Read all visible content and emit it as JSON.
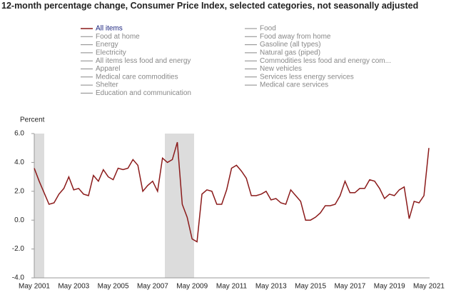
{
  "chart_data": {
    "type": "line",
    "title": "12-month percentage change, Consumer Price Index, selected categories, not seasonally adjusted",
    "y_label": "Percent",
    "categories": [
      "May 2001",
      null,
      null,
      null,
      null,
      null,
      null,
      null,
      "May 2003",
      null,
      null,
      null,
      null,
      null,
      null,
      null,
      "May 2005",
      null,
      null,
      null,
      null,
      null,
      null,
      null,
      "May 2007",
      null,
      null,
      null,
      null,
      null,
      null,
      null,
      "May 2009",
      null,
      null,
      null,
      null,
      null,
      null,
      null,
      "May 2011",
      null,
      null,
      null,
      null,
      null,
      null,
      null,
      "May 2013",
      null,
      null,
      null,
      null,
      null,
      null,
      null,
      "May 2015",
      null,
      null,
      null,
      null,
      null,
      null,
      null,
      "May 2017",
      null,
      null,
      null,
      null,
      null,
      null,
      null,
      "May 2019",
      null,
      null,
      null,
      null,
      null,
      null,
      null,
      "May 2021"
    ],
    "series": [
      {
        "name": "All items",
        "color": "#8b1a1a",
        "values": [
          3.6,
          2.7,
          1.9,
          1.1,
          1.2,
          1.8,
          2.2,
          3.0,
          2.1,
          2.2,
          1.8,
          1.7,
          3.1,
          2.7,
          3.5,
          3.0,
          2.8,
          3.6,
          3.5,
          3.6,
          4.2,
          3.8,
          2.0,
          2.4,
          2.7,
          2.0,
          4.3,
          4.0,
          4.2,
          5.4,
          1.1,
          0.2,
          -1.3,
          -1.5,
          1.8,
          2.1,
          2.0,
          1.1,
          1.1,
          2.1,
          3.6,
          3.8,
          3.4,
          2.9,
          1.7,
          1.7,
          1.8,
          2.0,
          1.4,
          1.5,
          1.2,
          1.1,
          2.1,
          1.7,
          1.3,
          0.0,
          0.0,
          0.2,
          0.5,
          1.0,
          1.0,
          1.1,
          1.7,
          2.7,
          1.9,
          1.9,
          2.2,
          2.2,
          2.8,
          2.7,
          2.2,
          1.5,
          1.8,
          1.7,
          2.1,
          2.3,
          0.1,
          1.3,
          1.2,
          1.7,
          5.0
        ]
      }
    ],
    "legend_left": [
      "Food at home",
      "Energy",
      "Electricity",
      "All items less food and energy",
      "Apparel",
      "Medical care commodities",
      "Shelter",
      "Education and communication"
    ],
    "legend_right": [
      "Food",
      "Food away from home",
      "Gasoline (all types)",
      "Natural gas (piped)",
      "Commodities less food and energy com...",
      "New vehicles",
      "Services less energy services",
      "Medical care services"
    ],
    "inactive_color": "#888888",
    "ylim": [
      -4,
      6
    ],
    "yticks": [
      {
        "value": -4,
        "label": "-4.0"
      },
      {
        "value": -2,
        "label": "-2.0"
      },
      {
        "value": 0,
        "label": "0.0"
      },
      {
        "value": 2,
        "label": "2.0"
      },
      {
        "value": 4,
        "label": "4.0"
      },
      {
        "value": 6,
        "label": "6.0"
      }
    ]
  }
}
